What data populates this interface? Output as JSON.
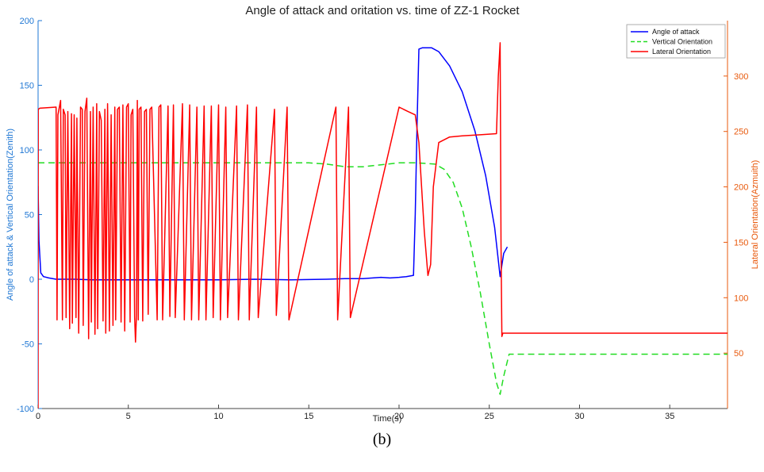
{
  "caption": "(b)",
  "chart_data": {
    "type": "line",
    "title": "Angle of attack and oritation vs. time of ZZ-1 Rocket",
    "xlabel": "Time(s)",
    "ylabel_left": "Angle of attack & Vertical Orientation(Zenith)",
    "ylabel_right": "Lateral Orientation(Azmuith)",
    "xlim": [
      0,
      38.2
    ],
    "ylim_left": [
      -100,
      200
    ],
    "ylim_right": [
      0,
      350
    ],
    "xticks": [
      0,
      5,
      10,
      15,
      20,
      25,
      30,
      35
    ],
    "yticks_left": [
      -100,
      -50,
      0,
      50,
      100,
      150,
      200
    ],
    "yticks_right": [
      50,
      100,
      150,
      200,
      250,
      300
    ],
    "grid": false,
    "legend_position": "top-right",
    "colors": {
      "left_axis": "#1f77d4",
      "right_axis": "#e8590c"
    },
    "series": [
      {
        "name": "Angle of attack",
        "axis": "left",
        "color": "#0000ff",
        "dash": "solid",
        "x": [
          0,
          0.05,
          0.15,
          0.3,
          0.6,
          1,
          2,
          3,
          5,
          8,
          10,
          12,
          14,
          16,
          17,
          18,
          19,
          19.5,
          20,
          20.4,
          20.8,
          20.9,
          21.0,
          21.1,
          21.3,
          21.8,
          22.2,
          22.8,
          23.5,
          24.2,
          24.8,
          25.3,
          25.6,
          25.8,
          26.0
        ],
        "y": [
          72,
          30,
          5,
          2,
          1,
          0,
          0,
          -0.5,
          -0.5,
          -0.5,
          -0.5,
          0,
          -0.5,
          0,
          0.5,
          0.5,
          1.5,
          1,
          1.5,
          2,
          3,
          50,
          120,
          178,
          179,
          179,
          176,
          165,
          145,
          115,
          80,
          40,
          2,
          20,
          25
        ]
      },
      {
        "name": "Vertical Orientation",
        "axis": "left",
        "color": "#22dd22",
        "dash": "dashed",
        "x": [
          0,
          5,
          10,
          15,
          16,
          17,
          18,
          19,
          20,
          21,
          22,
          22.5,
          23,
          23.5,
          24,
          24.5,
          25,
          25.4,
          25.6,
          25.8,
          26.1,
          26.5,
          30,
          38.2
        ],
        "y": [
          90,
          90,
          90,
          90,
          89,
          87,
          87,
          88.5,
          90,
          90,
          89,
          85,
          75,
          55,
          25,
          -10,
          -50,
          -80,
          -89,
          -75,
          -58,
          -58,
          -58,
          -58
        ]
      },
      {
        "name": "Lateral Orientation",
        "axis": "right",
        "color": "#ff0000",
        "dash": "solid",
        "x": [
          0,
          0.01,
          0.1,
          1.0,
          1.05,
          1.1,
          1.25,
          1.35,
          1.4,
          1.5,
          1.55,
          1.65,
          1.75,
          1.85,
          1.9,
          2.0,
          2.1,
          2.15,
          2.25,
          2.35,
          2.45,
          2.5,
          2.6,
          2.7,
          2.8,
          2.9,
          2.95,
          3.05,
          3.15,
          3.25,
          3.3,
          3.4,
          3.5,
          3.6,
          3.7,
          3.75,
          3.85,
          3.95,
          4.05,
          4.15,
          4.25,
          4.3,
          4.4,
          4.5,
          4.6,
          4.7,
          4.8,
          4.9,
          5.0,
          5.1,
          5.15,
          5.25,
          5.35,
          5.4,
          5.45,
          5.5,
          5.55,
          5.6,
          5.7,
          5.8,
          5.9,
          6.0,
          6.1,
          6.2,
          6.3,
          6.6,
          6.7,
          6.8,
          6.9,
          7.2,
          7.3,
          7.5,
          7.6,
          8.0,
          8.1,
          8.4,
          8.5,
          8.8,
          8.9,
          9.2,
          9.3,
          9.6,
          9.7,
          10.0,
          10.1,
          10.4,
          10.5,
          11.0,
          11.1,
          11.6,
          11.7,
          12.1,
          12.2,
          13.1,
          13.2,
          13.8,
          13.9,
          16.5,
          16.6,
          17.2,
          17.3,
          20.0,
          20.5,
          20.9,
          21.1,
          21.4,
          21.6,
          21.75,
          21.9,
          22.2,
          22.8,
          23.5,
          24.5,
          25.4,
          25.5,
          25.6,
          25.65,
          25.7,
          25.75,
          26.0,
          38.2
        ],
        "y": [
          0,
          270,
          271,
          272,
          80,
          265,
          278,
          80,
          270,
          265,
          82,
          268,
          72,
          266,
          77,
          265,
          82,
          262,
          68,
          272,
          270,
          75,
          268,
          280,
          63,
          268,
          78,
          272,
          67,
          275,
          72,
          268,
          260,
          79,
          270,
          68,
          275,
          70,
          265,
          75,
          272,
          80,
          270,
          272,
          78,
          274,
          70,
          272,
          275,
          78,
          265,
          270,
          82,
          60,
          84,
          278,
          80,
          270,
          272,
          79,
          268,
          270,
          85,
          270,
          272,
          80,
          272,
          274,
          80,
          273,
          83,
          274,
          82,
          275,
          80,
          274,
          80,
          272,
          80,
          273,
          80,
          273,
          82,
          274,
          80,
          272,
          82,
          273,
          80,
          274,
          80,
          272,
          82,
          270,
          84,
          272,
          80,
          272,
          80,
          272,
          82,
          272,
          268,
          265,
          240,
          160,
          120,
          130,
          200,
          240,
          245,
          246,
          247,
          248,
          300,
          330,
          150,
          65,
          68,
          68,
          68
        ]
      }
    ]
  }
}
